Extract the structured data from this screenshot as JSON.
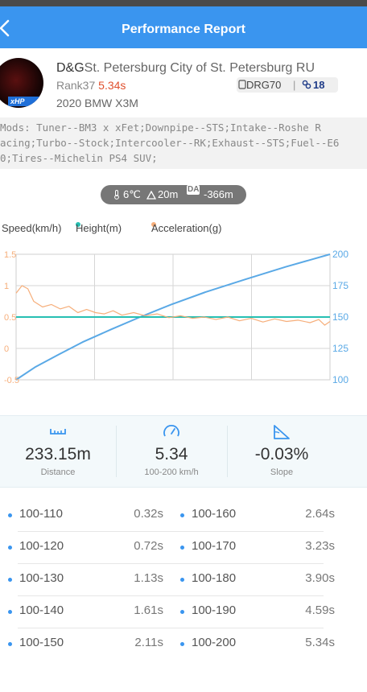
{
  "header": {
    "title": "Performance Report"
  },
  "profile": {
    "name": "D&G",
    "location": "St. Petersburg City of St. Petersburg RU",
    "rank_label": "Rank37",
    "rank_time": "5.34s",
    "car": "2020 BMW X3M",
    "avatar_badge": "xHP",
    "device": "DRG70",
    "separator": "|",
    "level": "18"
  },
  "mods": {
    "lines": [
      "Mods:  Tuner--BM3 x xFet;Downpipe--STS;Intake--Roshe R",
      "acing;Turbo--Stock;Intercooler--RK;Exhaust--STS;Fuel--E6",
      "0;Tires--Michelin PS4 SUV;"
    ]
  },
  "environment": {
    "temperature": "6℃",
    "altitude": "20m",
    "da_label": "DA",
    "density_altitude": "-366m"
  },
  "legend": {
    "speed": "Speed(km/h)",
    "height": "Height(m)",
    "acceleration": "Acceleration(g)"
  },
  "colors": {
    "speed": "#5aa9e6",
    "height": "#26bfb2",
    "acceleration": "#f6ae7a",
    "accent": "#3a95ef"
  },
  "chart_data": {
    "type": "line",
    "x_range": [
      0,
      5.34
    ],
    "left_axis": {
      "ticks": [
        "1.5",
        "1",
        "0.5",
        "0",
        "-0.5"
      ],
      "range": [
        -0.5,
        1.5
      ]
    },
    "right_axis": {
      "ticks": [
        "200",
        "175",
        "150",
        "125",
        "100"
      ],
      "range": [
        100,
        200
      ]
    },
    "grid": true,
    "series": [
      {
        "name": "Speed(km/h)",
        "axis": "right",
        "points": [
          [
            0,
            100
          ],
          [
            0.32,
            110
          ],
          [
            0.72,
            120
          ],
          [
            1.13,
            130
          ],
          [
            1.61,
            140
          ],
          [
            2.11,
            150
          ],
          [
            2.64,
            160
          ],
          [
            3.23,
            170
          ],
          [
            3.9,
            180
          ],
          [
            4.59,
            190
          ],
          [
            5.34,
            200
          ]
        ]
      },
      {
        "name": "Height(m)",
        "axis": "left",
        "points": [
          [
            0,
            0.5
          ],
          [
            1.34,
            0.5
          ],
          [
            2.67,
            0.5
          ],
          [
            4.0,
            0.5
          ],
          [
            5.34,
            0.5
          ]
        ]
      },
      {
        "name": "Acceleration(g)",
        "axis": "left",
        "points": [
          [
            0,
            0.88
          ],
          [
            0.1,
            1.0
          ],
          [
            0.2,
            0.95
          ],
          [
            0.3,
            0.75
          ],
          [
            0.45,
            0.66
          ],
          [
            0.6,
            0.7
          ],
          [
            0.75,
            0.63
          ],
          [
            0.9,
            0.67
          ],
          [
            1.05,
            0.57
          ],
          [
            1.2,
            0.62
          ],
          [
            1.35,
            0.57
          ],
          [
            1.5,
            0.55
          ],
          [
            1.65,
            0.6
          ],
          [
            1.8,
            0.53
          ],
          [
            2.0,
            0.57
          ],
          [
            2.2,
            0.52
          ],
          [
            2.4,
            0.55
          ],
          [
            2.6,
            0.49
          ],
          [
            2.8,
            0.52
          ],
          [
            3.0,
            0.48
          ],
          [
            3.2,
            0.5
          ],
          [
            3.4,
            0.46
          ],
          [
            3.6,
            0.5
          ],
          [
            3.8,
            0.44
          ],
          [
            4.0,
            0.48
          ],
          [
            4.2,
            0.42
          ],
          [
            4.4,
            0.47
          ],
          [
            4.6,
            0.43
          ],
          [
            4.8,
            0.45
          ],
          [
            5.0,
            0.41
          ],
          [
            5.15,
            0.46
          ],
          [
            5.25,
            0.37
          ],
          [
            5.34,
            0.43
          ]
        ]
      }
    ]
  },
  "stats": [
    {
      "value": "233.15m",
      "label": "Distance",
      "icon": "ruler-icon"
    },
    {
      "value": "5.34",
      "label": "100-200 km/h",
      "icon": "speedometer-icon"
    },
    {
      "value": "-0.03%",
      "label": "Slope",
      "icon": "slope-icon"
    }
  ],
  "splits": [
    {
      "range": "100-110",
      "time": "0.32s"
    },
    {
      "range": "100-120",
      "time": "0.72s"
    },
    {
      "range": "100-130",
      "time": "1.13s"
    },
    {
      "range": "100-140",
      "time": "1.61s"
    },
    {
      "range": "100-150",
      "time": "2.11s"
    },
    {
      "range": "100-160",
      "time": "2.64s"
    },
    {
      "range": "100-170",
      "time": "3.23s"
    },
    {
      "range": "100-180",
      "time": "3.90s"
    },
    {
      "range": "100-190",
      "time": "4.59s"
    },
    {
      "range": "100-200",
      "time": "5.34s"
    }
  ]
}
